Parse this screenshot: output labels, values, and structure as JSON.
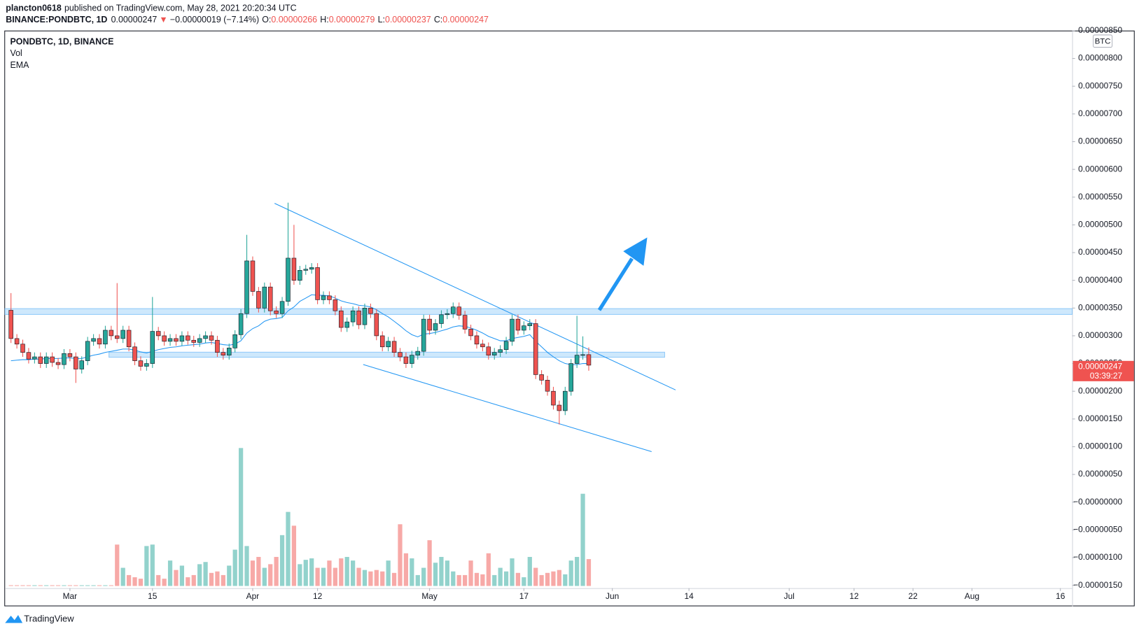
{
  "header": {
    "author": "plancton0618",
    "published": "published on TradingView.com, May 28, 2021 20:20:34 UTC",
    "symbol": "BINANCE:PONDBTC, 1D",
    "last": "0.00000247",
    "arrow": "▼",
    "change": "−0.00000019 (−7.14%)",
    "ohlc": [
      {
        "label": "O:",
        "value": "0.00000266"
      },
      {
        "label": "H:",
        "value": "0.00000279"
      },
      {
        "label": "L:",
        "value": "0.00000237"
      },
      {
        "label": "C:",
        "value": "0.00000247"
      }
    ]
  },
  "legend": [
    "PONDBTC, 1D, BINANCE",
    "Vol",
    "EMA"
  ],
  "unit": "BTC",
  "price_label": {
    "price": "0.00000247",
    "countdown": "03:39:27"
  },
  "brand": "TradingView",
  "chart_data": {
    "type": "candlestick",
    "up_color": "#26a69a",
    "down_color": "#ef5350",
    "ema_color": "#2196f3",
    "x": [
      "2021-02-19",
      "2021-02-20",
      "2021-02-21",
      "2021-02-22",
      "2021-02-23",
      "2021-02-24",
      "2021-02-25",
      "2021-02-26",
      "2021-02-27",
      "2021-02-28",
      "2021-03-01",
      "2021-03-02",
      "2021-03-03",
      "2021-03-04",
      "2021-03-05",
      "2021-03-06",
      "2021-03-07",
      "2021-03-08",
      "2021-03-09",
      "2021-03-10",
      "2021-03-11",
      "2021-03-12",
      "2021-03-13",
      "2021-03-14",
      "2021-03-15",
      "2021-03-16",
      "2021-03-17",
      "2021-03-18",
      "2021-03-19",
      "2021-03-20",
      "2021-03-21",
      "2021-03-22",
      "2021-03-23",
      "2021-03-24",
      "2021-03-25",
      "2021-03-26",
      "2021-03-27",
      "2021-03-28",
      "2021-03-29",
      "2021-03-30",
      "2021-03-31",
      "2021-04-01",
      "2021-04-02",
      "2021-04-03",
      "2021-04-04",
      "2021-04-05",
      "2021-04-06",
      "2021-04-07",
      "2021-04-08",
      "2021-04-09",
      "2021-04-10",
      "2021-04-11",
      "2021-04-12",
      "2021-04-13",
      "2021-04-14",
      "2021-04-15",
      "2021-04-16",
      "2021-04-17",
      "2021-04-18",
      "2021-04-19",
      "2021-04-20",
      "2021-04-21",
      "2021-04-22",
      "2021-04-23",
      "2021-04-24",
      "2021-04-25",
      "2021-04-26",
      "2021-04-27",
      "2021-04-28",
      "2021-04-29",
      "2021-04-30",
      "2021-05-01",
      "2021-05-02",
      "2021-05-03",
      "2021-05-04",
      "2021-05-05",
      "2021-05-06",
      "2021-05-07",
      "2021-05-08",
      "2021-05-09",
      "2021-05-10",
      "2021-05-11",
      "2021-05-12",
      "2021-05-13",
      "2021-05-14",
      "2021-05-15",
      "2021-05-16",
      "2021-05-17",
      "2021-05-18",
      "2021-05-19",
      "2021-05-20",
      "2021-05-21",
      "2021-05-22",
      "2021-05-23",
      "2021-05-24",
      "2021-05-25",
      "2021-05-26",
      "2021-05-27",
      "2021-05-28"
    ],
    "open": [
      3.46e-06,
      2.95e-06,
      2.85e-06,
      2.7e-06,
      2.58e-06,
      2.62e-06,
      2.5e-06,
      2.62e-06,
      2.52e-06,
      2.48e-06,
      2.68e-06,
      2.62e-06,
      2.4e-06,
      2.55e-06,
      2.9e-06,
      2.95e-06,
      2.85e-06,
      3.1e-06,
      3e-06,
      2.95e-06,
      3.1e-06,
      2.8e-06,
      2.55e-06,
      2.45e-06,
      2.5e-06,
      3.08e-06,
      3e-06,
      2.9e-06,
      2.95e-06,
      2.9e-06,
      3e-06,
      2.92e-06,
      2.88e-06,
      2.95e-06,
      3e-06,
      2.92e-06,
      2.7e-06,
      2.65e-06,
      2.78e-06,
      3.02e-06,
      3.4e-06,
      4.35e-06,
      3.8e-06,
      3.5e-06,
      3.88e-06,
      3.45e-06,
      3.4e-06,
      3.62e-06,
      4.4e-06,
      4e-06,
      4.18e-06,
      4.2e-06,
      4.23e-06,
      3.65e-06,
      3.72e-06,
      3.65e-06,
      3.45e-06,
      3.15e-06,
      3.25e-06,
      3.45e-06,
      3.2e-06,
      3.5e-06,
      3.4e-06,
      3e-06,
      2.8e-06,
      2.9e-06,
      2.7e-06,
      2.62e-06,
      2.5e-06,
      2.65e-06,
      2.72e-06,
      3.3e-06,
      3.1e-06,
      3.22e-06,
      3.38e-06,
      3.4e-06,
      3.52e-06,
      3.37e-06,
      3.12e-06,
      3e-06,
      2.85e-06,
      2.8e-06,
      2.65e-06,
      2.7e-06,
      2.75e-06,
      2.9e-06,
      3.3e-06,
      3.1e-06,
      3.18e-06,
      3.22e-06,
      2.3e-06,
      2.2e-06,
      2e-06,
      1.75e-06,
      1.65e-06,
      2e-06,
      2.5e-06,
      2.65e-06,
      2.66e-06
    ],
    "high": [
      3.77e-06,
      3.03e-06,
      2.93e-06,
      2.78e-06,
      2.7e-06,
      2.7e-06,
      2.7e-06,
      2.7e-06,
      2.6e-06,
      2.76e-06,
      2.76e-06,
      2.7e-06,
      2.63e-06,
      2.98e-06,
      3.03e-06,
      3.03e-06,
      3.18e-06,
      3.18e-06,
      3.95e-06,
      3.18e-06,
      3.18e-06,
      2.88e-06,
      2.63e-06,
      2.58e-06,
      3.7e-06,
      3.16e-06,
      3.08e-06,
      3.03e-06,
      3.03e-06,
      3.08e-06,
      3.08e-06,
      3e-06,
      3.03e-06,
      3.08e-06,
      3.08e-06,
      3e-06,
      2.78e-06,
      2.86e-06,
      3.1e-06,
      3.48e-06,
      4.82e-06,
      4.43e-06,
      3.88e-06,
      3.96e-06,
      3.96e-06,
      3.53e-06,
      3.7e-06,
      5.4e-06,
      5e-06,
      4.26e-06,
      4.28e-06,
      4.31e-06,
      4.31e-06,
      3.8e-06,
      3.8e-06,
      3.73e-06,
      3.53e-06,
      3.33e-06,
      3.53e-06,
      3.53e-06,
      3.58e-06,
      3.58e-06,
      3.48e-06,
      3.08e-06,
      2.98e-06,
      2.98e-06,
      2.78e-06,
      2.7e-06,
      2.73e-06,
      2.8e-06,
      3.38e-06,
      3.38e-06,
      3.3e-06,
      3.46e-06,
      3.48e-06,
      3.6e-06,
      3.6e-06,
      3.45e-06,
      3.2e-06,
      3.08e-06,
      2.93e-06,
      2.88e-06,
      2.78e-06,
      2.83e-06,
      2.98e-06,
      3.38e-06,
      3.38e-06,
      3.26e-06,
      3.3e-06,
      3.3e-06,
      2.38e-06,
      2.28e-06,
      2.08e-06,
      1.83e-06,
      2.08e-06,
      2.58e-06,
      3.36e-06,
      2.99e-06,
      2.79e-06
    ],
    "low": [
      2.87e-06,
      2.77e-06,
      2.62e-06,
      2.5e-06,
      2.5e-06,
      2.42e-06,
      2.42e-06,
      2.44e-06,
      2.4e-06,
      2.4e-06,
      2.54e-06,
      2.15e-06,
      2.32e-06,
      2.47e-06,
      2.82e-06,
      2.77e-06,
      2.77e-06,
      2.92e-06,
      2.87e-06,
      2.87e-06,
      2.72e-06,
      2.47e-06,
      2.37e-06,
      2.37e-06,
      2.42e-06,
      2.92e-06,
      2.82e-06,
      2.82e-06,
      2.82e-06,
      2.82e-06,
      2.84e-06,
      2.8e-06,
      2.8e-06,
      2.87e-06,
      2.84e-06,
      2.62e-06,
      2.57e-06,
      2.57e-06,
      2.7e-06,
      2.94e-06,
      3.32e-06,
      3.72e-06,
      3.42e-06,
      3.42e-06,
      3.37e-06,
      3.32e-06,
      3.32e-06,
      3.54e-06,
      3.92e-06,
      3.92e-06,
      4.1e-06,
      4.12e-06,
      3.57e-06,
      3.57e-06,
      3.57e-06,
      3.37e-06,
      3.07e-06,
      3.07e-06,
      3.17e-06,
      3.12e-06,
      3.12e-06,
      3.32e-06,
      2.92e-06,
      2.72e-06,
      2.72e-06,
      2.62e-06,
      2.54e-06,
      2.42e-06,
      2.42e-06,
      2.57e-06,
      2.64e-06,
      3.02e-06,
      3.02e-06,
      3.14e-06,
      3.3e-06,
      3.32e-06,
      3.29e-06,
      3.04e-06,
      2.92e-06,
      2.77e-06,
      2.72e-06,
      2.57e-06,
      2.57e-06,
      2.62e-06,
      2.67e-06,
      2.82e-06,
      3.02e-06,
      3.02e-06,
      3.1e-06,
      2.22e-06,
      2.12e-06,
      1.92e-06,
      1.67e-06,
      1.4e-06,
      1.57e-06,
      1.92e-06,
      2.42e-06,
      2.57e-06,
      2.37e-06
    ],
    "close": [
      2.95e-06,
      2.85e-06,
      2.7e-06,
      2.58e-06,
      2.62e-06,
      2.5e-06,
      2.62e-06,
      2.52e-06,
      2.48e-06,
      2.68e-06,
      2.62e-06,
      2.4e-06,
      2.55e-06,
      2.9e-06,
      2.95e-06,
      2.85e-06,
      3.1e-06,
      3e-06,
      2.95e-06,
      3.1e-06,
      2.8e-06,
      2.55e-06,
      2.45e-06,
      2.5e-06,
      3.08e-06,
      3e-06,
      2.9e-06,
      2.95e-06,
      2.9e-06,
      3e-06,
      2.92e-06,
      2.88e-06,
      2.95e-06,
      3e-06,
      2.92e-06,
      2.7e-06,
      2.65e-06,
      2.78e-06,
      3.02e-06,
      3.4e-06,
      4.35e-06,
      3.8e-06,
      3.5e-06,
      3.88e-06,
      3.45e-06,
      3.4e-06,
      3.62e-06,
      4.4e-06,
      4e-06,
      4.18e-06,
      4.2e-06,
      4.23e-06,
      3.65e-06,
      3.72e-06,
      3.65e-06,
      3.45e-06,
      3.15e-06,
      3.25e-06,
      3.45e-06,
      3.2e-06,
      3.5e-06,
      3.4e-06,
      3e-06,
      2.8e-06,
      2.9e-06,
      2.7e-06,
      2.62e-06,
      2.5e-06,
      2.65e-06,
      2.72e-06,
      3.3e-06,
      3.1e-06,
      3.22e-06,
      3.38e-06,
      3.4e-06,
      3.52e-06,
      3.37e-06,
      3.12e-06,
      3e-06,
      2.85e-06,
      2.8e-06,
      2.65e-06,
      2.7e-06,
      2.75e-06,
      2.9e-06,
      3.3e-06,
      3.1e-06,
      3.18e-06,
      3.22e-06,
      2.3e-06,
      2.2e-06,
      2e-06,
      1.75e-06,
      1.65e-06,
      2e-06,
      2.5e-06,
      2.65e-06,
      2.66e-06,
      2.47e-06
    ],
    "ema": [
      2.55e-06,
      2.56e-06,
      2.57e-06,
      2.57e-06,
      2.58e-06,
      2.58e-06,
      2.59e-06,
      2.59e-06,
      2.59e-06,
      2.6e-06,
      2.6e-06,
      2.59e-06,
      2.59e-06,
      2.62e-06,
      2.65e-06,
      2.67e-06,
      2.7e-06,
      2.72e-06,
      2.74e-06,
      2.76e-06,
      2.76e-06,
      2.74e-06,
      2.71e-06,
      2.69e-06,
      2.72e-06,
      2.75e-06,
      2.77e-06,
      2.79e-06,
      2.8e-06,
      2.82e-06,
      2.83e-06,
      2.84e-06,
      2.85e-06,
      2.87e-06,
      2.88e-06,
      2.86e-06,
      2.84e-06,
      2.83e-06,
      2.85e-06,
      2.91e-06,
      3.05e-06,
      3.13e-06,
      3.18e-06,
      3.26e-06,
      3.3e-06,
      3.31e-06,
      3.33e-06,
      3.45e-06,
      3.52e-06,
      3.62e-06,
      3.68e-06,
      3.74e-06,
      3.73e-06,
      3.73e-06,
      3.72e-06,
      3.68e-06,
      3.63e-06,
      3.6e-06,
      3.58e-06,
      3.55e-06,
      3.54e-06,
      3.52e-06,
      3.47e-06,
      3.4e-06,
      3.34e-06,
      3.26e-06,
      3.18e-06,
      3.09e-06,
      3.02e-06,
      2.98e-06,
      3.03e-06,
      3.04e-06,
      3.06e-06,
      3.09e-06,
      3.12e-06,
      3.16e-06,
      3.18e-06,
      3.17e-06,
      3.14e-06,
      3.1e-06,
      3.05e-06,
      2.99e-06,
      2.95e-06,
      2.91e-06,
      2.91e-06,
      2.95e-06,
      2.97e-06,
      2.99e-06,
      3.02e-06,
      2.9e-06,
      2.8e-06,
      2.7e-06,
      2.62e-06,
      2.55e-06,
      2.5e-06,
      2.48e-06,
      2.48e-06,
      2.5e-06,
      2.5e-06
    ],
    "volume": [
      1,
      1,
      1,
      1,
      1,
      1,
      1,
      1,
      1,
      1,
      1,
      1,
      1,
      1,
      1,
      1,
      1,
      1,
      57,
      25,
      15,
      12,
      10,
      55,
      57,
      15,
      10,
      35,
      22,
      28,
      12,
      15,
      30,
      33,
      18,
      20,
      15,
      28,
      50,
      190,
      55,
      35,
      40,
      25,
      30,
      40,
      70,
      102,
      83,
      30,
      36,
      38,
      25,
      25,
      35,
      25,
      38,
      40,
      35,
      25,
      22,
      20,
      22,
      20,
      35,
      18,
      85,
      45,
      38,
      15,
      25,
      63,
      32,
      40,
      35,
      20,
      15,
      15,
      35,
      18,
      16,
      45,
      15,
      25,
      20,
      38,
      18,
      12,
      40,
      25,
      15,
      18,
      20,
      22,
      16,
      35,
      40,
      127,
      37
    ],
    "xlim": [
      "2021-02-18",
      "2021-08-18"
    ],
    "xticks": [
      {
        "value": "2021-03-01",
        "label": "Mar"
      },
      {
        "value": "2021-03-15",
        "label": "15"
      },
      {
        "value": "2021-04-01",
        "label": "Apr"
      },
      {
        "value": "2021-04-12",
        "label": "12"
      },
      {
        "value": "2021-05-01",
        "label": "May"
      },
      {
        "value": "2021-05-17",
        "label": "17"
      },
      {
        "value": "2021-06-01",
        "label": "Jun"
      },
      {
        "value": "2021-06-14",
        "label": "14"
      },
      {
        "value": "2021-07-01",
        "label": "Jul"
      },
      {
        "value": "2021-07-12",
        "label": "12"
      },
      {
        "value": "2021-07-22",
        "label": "22"
      },
      {
        "value": "2021-08-01",
        "label": "Aug"
      },
      {
        "value": "2021-08-16",
        "label": "16"
      }
    ],
    "ylim": [
      -1.55e-06,
      8.49e-06
    ],
    "yticks": [
      {
        "value": 8.5e-06,
        "label": "0.00000850"
      },
      {
        "value": 8e-06,
        "label": "0.00000800"
      },
      {
        "value": 7.5e-06,
        "label": "0.00000750"
      },
      {
        "value": 7e-06,
        "label": "0.00000700"
      },
      {
        "value": 6.5e-06,
        "label": "0.00000650"
      },
      {
        "value": 6e-06,
        "label": "0.00000600"
      },
      {
        "value": 5.5e-06,
        "label": "0.00000550"
      },
      {
        "value": 5e-06,
        "label": "0.00000500"
      },
      {
        "value": 4.5e-06,
        "label": "0.00000450"
      },
      {
        "value": 4e-06,
        "label": "0.00000400"
      },
      {
        "value": 3.5e-06,
        "label": "0.00000350"
      },
      {
        "value": 3e-06,
        "label": "0.00000300"
      },
      {
        "value": 2.5e-06,
        "label": "0.00000250"
      },
      {
        "value": 2e-06,
        "label": "0.00000200"
      },
      {
        "value": 1.5e-06,
        "label": "0.00000150"
      },
      {
        "value": 1e-06,
        "label": "0.00000100"
      },
      {
        "value": 5e-07,
        "label": "0.00000050"
      },
      {
        "value": 0,
        "label": "−0.00000000"
      },
      {
        "value": -5e-07,
        "label": "−0.00000050"
      },
      {
        "value": -1e-06,
        "label": "−0.00000100"
      },
      {
        "value": -1.5e-06,
        "label": "−0.00000150"
      }
    ]
  }
}
